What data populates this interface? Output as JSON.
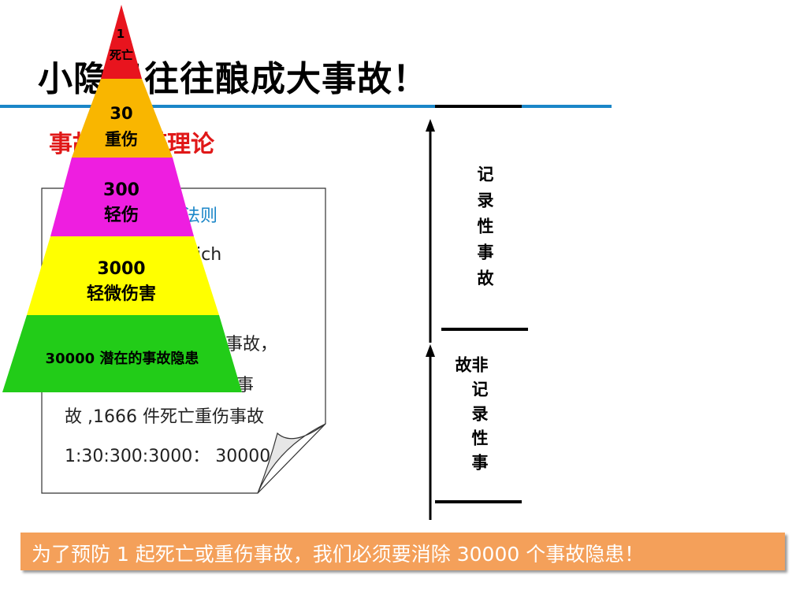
{
  "title": "小隐患往往酿成大事故！",
  "subtitle": "事故金字塔理论",
  "note": {
    "law": "法则",
    "name": "rich",
    "line1": "事故，",
    "line2": "事",
    "line3": "故 ,1666 件死亡重伤事故",
    "ratio": "1:30:300:3000：  30000"
  },
  "pyramid": {
    "levels": [
      {
        "line1": "1",
        "line2": "死亡",
        "color": "#e8141e"
      },
      {
        "line1": "30",
        "line2": "重伤",
        "color": "#f9b600"
      },
      {
        "line1": "300",
        "line2": "轻伤",
        "color": "#ee1ee0"
      },
      {
        "line1": "3000",
        "line2": "轻微伤害",
        "color": "#ffff00"
      },
      {
        "line1": "30000 潜在的事故隐患",
        "line2": "",
        "color": "#22cc18"
      }
    ]
  },
  "scale": {
    "recordable": "记录性事故",
    "non_recordable": "非记录性事故"
  },
  "banner": "为了预防 1 起死亡或重伤事故，我们必须要消除 30000 个事故隐患！"
}
